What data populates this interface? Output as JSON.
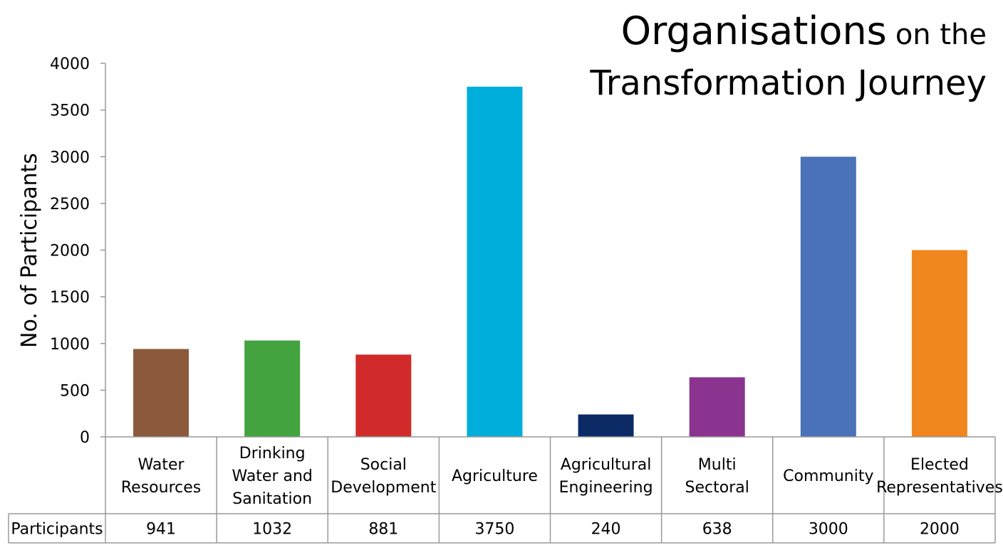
{
  "chart_data": {
    "type": "bar",
    "title_main": "Organisations",
    "title_suffix": "on the",
    "title_line2": "Transformation Journey",
    "ylabel": "No. of Participants",
    "ylim": [
      0,
      4000
    ],
    "yticks": [
      0,
      500,
      1000,
      1500,
      2000,
      2500,
      3000,
      3500,
      4000
    ],
    "grid": false,
    "legend": "none",
    "categories": [
      [
        "Water",
        "Resources"
      ],
      [
        "Drinking",
        "Water and",
        "Sanitation"
      ],
      [
        "Social",
        "Development"
      ],
      [
        "Agriculture"
      ],
      [
        "Agricultural",
        "Engineering"
      ],
      [
        "Multi",
        "Sectoral"
      ],
      [
        "Community"
      ],
      [
        "Elected",
        "Representatives"
      ]
    ],
    "series": [
      {
        "name": "Participants",
        "values": [
          941,
          1032,
          881,
          3750,
          240,
          638,
          3000,
          2000
        ]
      }
    ],
    "colors": [
      "#8B5A3C",
      "#43A33F",
      "#D12A2A",
      "#00AEDB",
      "#0B2A66",
      "#8A3490",
      "#4A72B8",
      "#F0861E"
    ],
    "table_row_label": "Participants"
  }
}
